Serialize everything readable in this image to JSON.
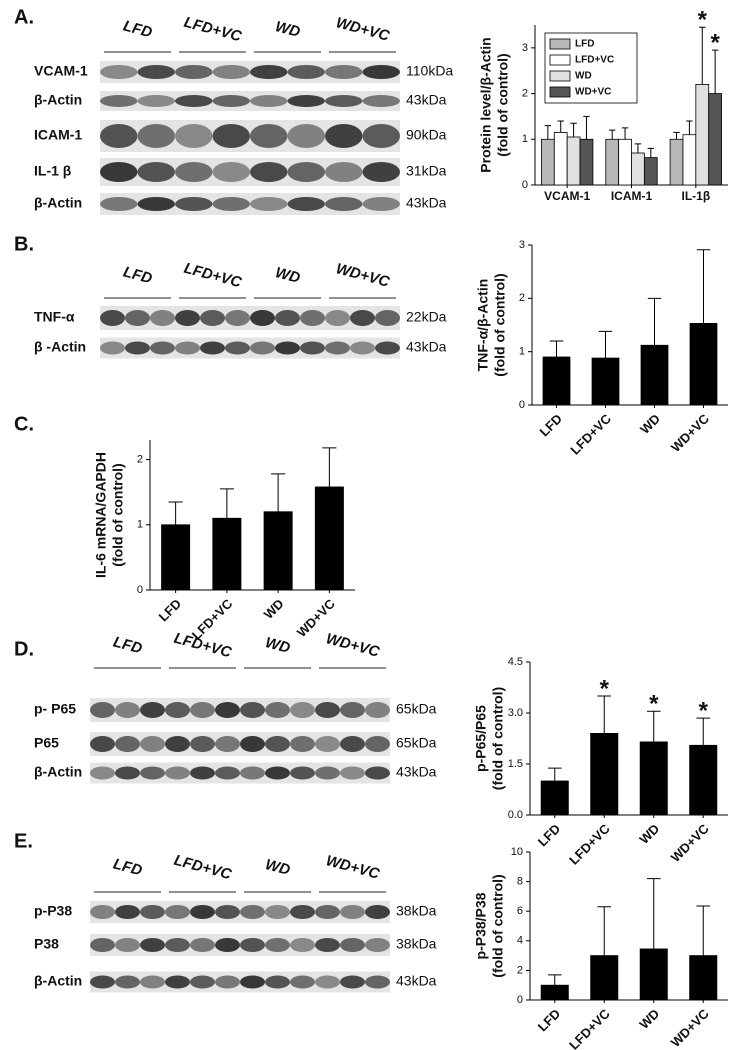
{
  "panel_labels": [
    "A.",
    "B.",
    "C.",
    "D.",
    "E."
  ],
  "blots": [
    {
      "groups": [
        "LFD",
        "LFD+VC",
        "WD",
        "WD+VC"
      ],
      "rows": [
        {
          "label": "VCAM-1",
          "size": "110kDa"
        },
        {
          "label": "β-Actin",
          "size": "43kDa"
        },
        {
          "label": "ICAM-1",
          "size": "90kDa"
        },
        {
          "label": "IL-1 β",
          "size": "31kDa"
        },
        {
          "label": "β-Actin",
          "size": "43kDa"
        }
      ]
    },
    {
      "groups": [
        "LFD",
        "LFD+VC",
        "WD",
        "WD+VC"
      ],
      "rows": [
        {
          "label": "TNF-α",
          "size": "22kDa"
        },
        {
          "label": "β -Actin",
          "size": "43kDa"
        }
      ]
    },
    {
      "groups": [
        "LFD",
        "LFD+VC",
        "WD",
        "WD+VC"
      ],
      "rows": [
        {
          "label": "p- P65",
          "size": "65kDa"
        },
        {
          "label": "P65",
          "size": "65kDa"
        },
        {
          "label": "β-Actin",
          "size": "43kDa"
        }
      ]
    },
    {
      "groups": [
        "LFD",
        "LFD+VC",
        "WD",
        "WD+VC"
      ],
      "rows": [
        {
          "label": "p-P38",
          "size": "38kDa"
        },
        {
          "label": "P38",
          "size": "38kDa"
        },
        {
          "label": "β-Actin",
          "size": "43kDa"
        }
      ]
    }
  ],
  "chart_data": [
    {
      "type": "bar",
      "ylabel": [
        "Protein level/β-Actin",
        "(fold of control)"
      ],
      "categories": [
        "VCAM-1",
        "ICAM-1",
        "IL-1β"
      ],
      "ylim": [
        0,
        3.5
      ],
      "yticks": [
        0,
        1,
        2,
        3
      ],
      "legend": "upper left",
      "series": [
        {
          "name": "LFD",
          "color": "#b8b8b8",
          "values": [
            1,
            1,
            1
          ],
          "errors": [
            0.3,
            0.2,
            0.15
          ],
          "significance": [
            null,
            null,
            null
          ]
        },
        {
          "name": "LFD+VC",
          "color": "#ffffff",
          "values": [
            1.15,
            1.0,
            1.1
          ],
          "errors": [
            0.25,
            0.25,
            0.3
          ],
          "significance": [
            null,
            null,
            null
          ]
        },
        {
          "name": "WD",
          "color": "#e0e0e0",
          "values": [
            1.05,
            0.7,
            2.2
          ],
          "errors": [
            0.3,
            0.2,
            1.25
          ],
          "significance": [
            null,
            null,
            "*"
          ]
        },
        {
          "name": "WD+VC",
          "color": "#555555",
          "values": [
            1.0,
            0.6,
            2.0
          ],
          "errors": [
            0.5,
            0.2,
            0.95
          ],
          "significance": [
            null,
            null,
            "*"
          ]
        }
      ]
    },
    {
      "type": "bar",
      "ylabel": [
        "TNF-α/β-Actin",
        "(fold of control)"
      ],
      "categories": [
        "LFD",
        "LFD+VC",
        "WD",
        "WD+VC"
      ],
      "values": [
        0.9,
        0.88,
        1.12,
        1.53
      ],
      "errors": [
        0.3,
        0.5,
        0.88,
        1.38
      ],
      "significance": [
        null,
        null,
        null,
        null
      ],
      "color": "#000000",
      "ylim": [
        0,
        3
      ],
      "yticks": [
        0,
        1,
        2,
        3
      ]
    },
    {
      "type": "bar",
      "ylabel": [
        "IL-6 mRNA/GAPDH",
        "(fold of control)"
      ],
      "categories": [
        "LFD",
        "LFD+VC",
        "WD",
        "WD+VC"
      ],
      "values": [
        1.0,
        1.1,
        1.2,
        1.58
      ],
      "errors": [
        0.35,
        0.45,
        0.58,
        0.6
      ],
      "significance": [
        null,
        null,
        null,
        null
      ],
      "color": "#000000",
      "ylim": [
        0,
        2.3
      ],
      "yticks": [
        0,
        1,
        2
      ]
    },
    {
      "type": "bar",
      "ylabel": [
        "p-P65/P65",
        "(fold of control)"
      ],
      "categories": [
        "LFD",
        "LFD+VC",
        "WD",
        "WD+VC"
      ],
      "values": [
        1.0,
        2.4,
        2.15,
        2.05
      ],
      "errors": [
        0.38,
        1.1,
        0.9,
        0.8
      ],
      "significance": [
        null,
        "*",
        "*",
        "*"
      ],
      "color": "#000000",
      "ylim": [
        0,
        4.5
      ],
      "yticks": [
        {
          "value": 0,
          "label": "0.0"
        },
        1.5,
        {
          "value": 3,
          "label": "3.0"
        },
        4.5
      ]
    },
    {
      "type": "bar",
      "ylabel": [
        "p-P38/P38",
        "(fold of control)"
      ],
      "categories": [
        "LFD",
        "LFD+VC",
        "WD",
        "WD+VC"
      ],
      "values": [
        1.0,
        3.0,
        3.45,
        3.0
      ],
      "errors": [
        0.7,
        3.3,
        4.75,
        3.35
      ],
      "significance": [
        null,
        null,
        null,
        null
      ],
      "color": "#000000",
      "ylim": [
        0,
        10
      ],
      "yticks": [
        0,
        2,
        4,
        6,
        8,
        10
      ]
    }
  ]
}
